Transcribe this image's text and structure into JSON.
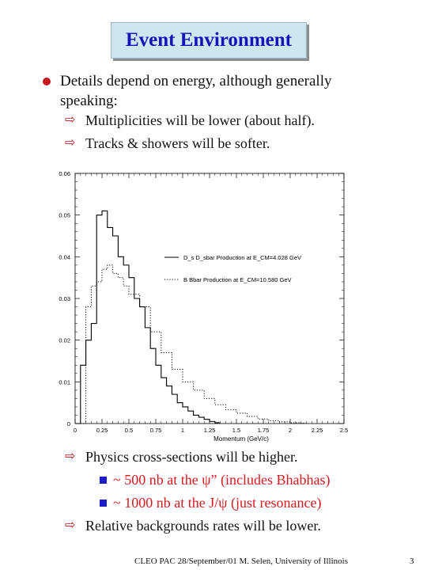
{
  "slide": {
    "title": "Event Environment",
    "bullet_text": "Details depend on energy, although generally speaking:",
    "sub_items": [
      "Multiplicities will be lower (about half).",
      "Tracks & showers will be softer."
    ],
    "after_items": [
      "Physics cross-sections will be higher.",
      "Relative backgrounds rates will be lower."
    ],
    "red_items": [
      "~ 500 nb at the ψ” (includes Bhabhas)",
      "~ 1000 nb at the J/ψ (just resonance)"
    ],
    "footer": "CLEO PAC 28/September/01 M. Selen, University of Illinois",
    "page_number": "3"
  },
  "chart_data": {
    "type": "line",
    "xlabel": "Momentum (GeV/c)",
    "xlim": [
      0,
      2.5
    ],
    "ylim": [
      0,
      0.06
    ],
    "xticks": [
      "0",
      "0.25",
      "0.5",
      "0.75",
      "1",
      "1.25",
      "1.5",
      "1.75",
      "2",
      "2.25",
      "2.5"
    ],
    "yticks": [
      "0",
      "0.01",
      "0.02",
      "0.03",
      "0.04",
      "0.05",
      "0.06"
    ],
    "series": [
      {
        "name": "D_s D_sbar Production at E_CM=4.028 GeV",
        "style": "solid",
        "x": [
          0.0,
          0.05,
          0.1,
          0.15,
          0.2,
          0.25,
          0.3,
          0.35,
          0.4,
          0.45,
          0.5,
          0.55,
          0.6,
          0.65,
          0.7,
          0.75,
          0.8,
          0.85,
          0.9,
          0.95,
          1.0,
          1.05,
          1.1,
          1.15,
          1.2,
          1.25,
          1.3
        ],
        "y": [
          0.0,
          0.014,
          0.02,
          0.024,
          0.05,
          0.051,
          0.047,
          0.045,
          0.04,
          0.038,
          0.035,
          0.03,
          0.028,
          0.023,
          0.018,
          0.014,
          0.011,
          0.009,
          0.007,
          0.005,
          0.004,
          0.003,
          0.002,
          0.0015,
          0.001,
          0.0005,
          0.0002
        ]
      },
      {
        "name": "B Bbar Production at E_CM=10.580 GeV",
        "style": "dotted",
        "x": [
          0.0,
          0.1,
          0.15,
          0.2,
          0.25,
          0.3,
          0.35,
          0.4,
          0.45,
          0.5,
          0.6,
          0.7,
          0.8,
          0.9,
          1.0,
          1.1,
          1.2,
          1.3,
          1.4,
          1.5,
          1.6,
          1.7,
          1.8,
          1.9,
          2.0,
          2.1
        ],
        "y": [
          0.0,
          0.028,
          0.033,
          0.034,
          0.037,
          0.038,
          0.036,
          0.035,
          0.033,
          0.031,
          0.028,
          0.022,
          0.017,
          0.013,
          0.01,
          0.008,
          0.006,
          0.0045,
          0.0033,
          0.0025,
          0.0017,
          0.0011,
          0.0007,
          0.0004,
          0.0002,
          0.0001
        ]
      }
    ]
  }
}
